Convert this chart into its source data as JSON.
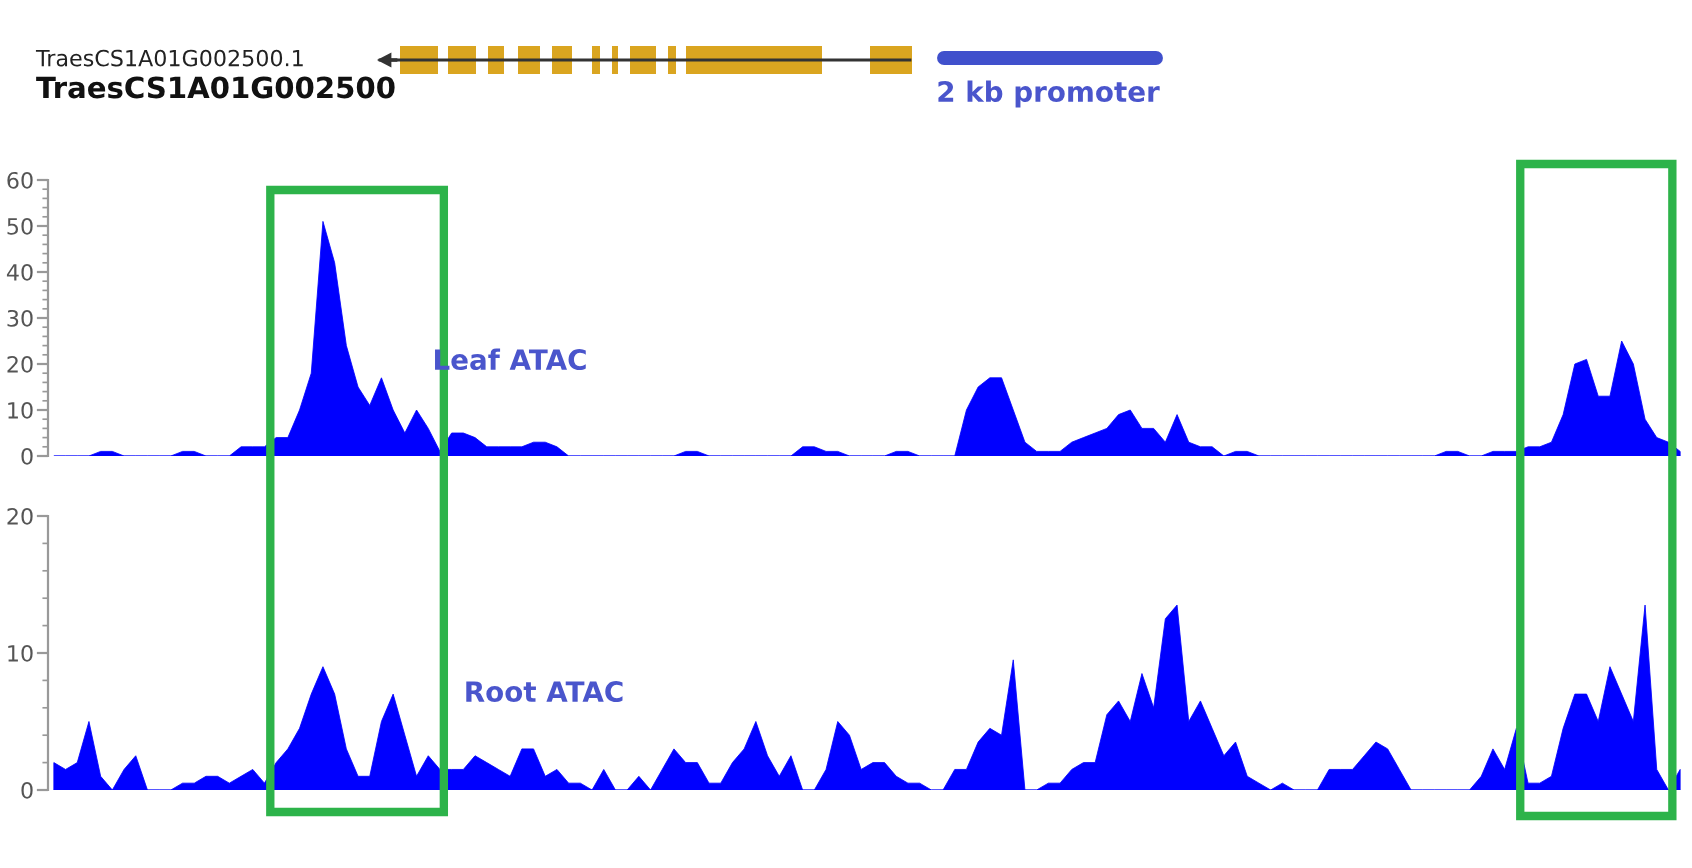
{
  "chart_data": [
    {
      "type": "area",
      "title": "Leaf ATAC",
      "annotations": [
        "TraesCS1A01G002500.1",
        "TraesCS1A01G002500",
        "2 kb promoter"
      ],
      "ylim": [
        0,
        60
      ],
      "yticks": [
        0,
        10,
        20,
        30,
        40,
        50,
        60
      ],
      "color": "#0000ff",
      "categories": [
        null,
        null,
        null,
        null,
        null,
        null,
        null,
        null,
        null,
        null,
        null,
        null,
        null,
        null,
        null,
        null,
        null,
        null,
        null,
        null,
        null,
        null,
        null,
        null,
        null,
        null,
        null,
        null,
        null,
        null,
        null,
        null,
        null,
        null,
        null,
        null,
        null,
        null,
        null,
        null,
        null,
        null,
        null,
        null,
        null,
        null,
        null,
        null,
        null,
        null,
        null,
        null,
        null,
        null,
        null,
        null,
        null,
        null,
        null,
        null,
        null,
        null,
        null,
        null,
        null,
        null,
        null,
        null,
        null,
        null,
        null,
        null,
        null,
        null,
        null,
        null,
        null,
        null,
        null,
        null,
        null,
        null,
        null,
        null,
        null,
        null,
        null,
        null,
        null,
        null,
        null,
        null,
        null,
        null,
        null,
        null,
        null,
        null,
        null,
        null,
        null,
        null,
        null,
        null,
        null,
        null,
        null,
        null,
        null,
        null,
        null,
        null,
        null,
        null,
        null,
        null,
        null,
        null,
        null,
        null,
        null,
        null,
        null,
        null,
        null,
        null,
        null,
        null,
        null,
        null,
        null,
        null,
        null,
        null,
        null,
        null,
        null,
        null,
        null,
        null
      ],
      "values": [
        0,
        0,
        0,
        0,
        1,
        1,
        0,
        0,
        0,
        0,
        0,
        1,
        1,
        0,
        0,
        0,
        2,
        2,
        2,
        4,
        4,
        10,
        18,
        51,
        42,
        24,
        15,
        11,
        17,
        10,
        5,
        10,
        6,
        1,
        5,
        5,
        4,
        2,
        2,
        2,
        2,
        3,
        3,
        2,
        0,
        0,
        0,
        0,
        0,
        0,
        0,
        0,
        0,
        0,
        1,
        1,
        0,
        0,
        0,
        0,
        0,
        0,
        0,
        0,
        2,
        2,
        1,
        1,
        0,
        0,
        0,
        0,
        1,
        1,
        0,
        0,
        0,
        0,
        10,
        15,
        17,
        17,
        10,
        3,
        1,
        1,
        1,
        3,
        4,
        5,
        6,
        9,
        10,
        6,
        6,
        3,
        9,
        3,
        2,
        2,
        0,
        1,
        1,
        0,
        0,
        0,
        0,
        0,
        0,
        0,
        0,
        0,
        0,
        0,
        0,
        0,
        0,
        0,
        0,
        1,
        1,
        0,
        0,
        1,
        1,
        1,
        2,
        2,
        3,
        9,
        20,
        21,
        13,
        13,
        25,
        20,
        8,
        4,
        3,
        1
      ]
    },
    {
      "type": "area",
      "title": "Root ATAC",
      "ylim": [
        0,
        20
      ],
      "yticks": [
        0,
        10,
        20
      ],
      "color": "#0000ff",
      "categories": [
        null,
        null,
        null,
        null,
        null,
        null,
        null,
        null,
        null,
        null,
        null,
        null,
        null,
        null,
        null,
        null,
        null,
        null,
        null,
        null,
        null,
        null,
        null,
        null,
        null,
        null,
        null,
        null,
        null,
        null,
        null,
        null,
        null,
        null,
        null,
        null,
        null,
        null,
        null,
        null,
        null,
        null,
        null,
        null,
        null,
        null,
        null,
        null,
        null,
        null,
        null,
        null,
        null,
        null,
        null,
        null,
        null,
        null,
        null,
        null,
        null,
        null,
        null,
        null,
        null,
        null,
        null,
        null,
        null,
        null,
        null,
        null,
        null,
        null,
        null,
        null,
        null,
        null,
        null,
        null,
        null,
        null,
        null,
        null,
        null,
        null,
        null,
        null,
        null,
        null,
        null,
        null,
        null,
        null,
        null,
        null,
        null,
        null,
        null,
        null,
        null,
        null,
        null,
        null,
        null,
        null,
        null,
        null,
        null,
        null,
        null,
        null,
        null,
        null,
        null,
        null,
        null,
        null,
        null,
        null,
        null,
        null,
        null,
        null,
        null,
        null,
        null,
        null,
        null,
        null,
        null,
        null,
        null,
        null,
        null,
        null,
        null,
        null,
        null,
        null
      ],
      "values": [
        2,
        1.5,
        2,
        5,
        1,
        0,
        1.5,
        2.5,
        0,
        0,
        0,
        0.5,
        0.5,
        1,
        1,
        0.5,
        1,
        1.5,
        0.5,
        2,
        3,
        4.5,
        7,
        9,
        7,
        3,
        1,
        1,
        5,
        7,
        4,
        1,
        2.5,
        1.5,
        1.5,
        1.5,
        2.5,
        2,
        1.5,
        1,
        3,
        3,
        1,
        1.5,
        0.5,
        0.5,
        0,
        1.5,
        0,
        0,
        1,
        0,
        1.5,
        3,
        2,
        2,
        0.5,
        0.5,
        2,
        3,
        5,
        2.5,
        1,
        2.5,
        0,
        0,
        1.5,
        5,
        4,
        1.5,
        2,
        2,
        1,
        0.5,
        0.5,
        0,
        0,
        1.5,
        1.5,
        3.5,
        4.5,
        4,
        9.5,
        0,
        0,
        0.5,
        0.5,
        1.5,
        2,
        2,
        5.5,
        6.5,
        5,
        8.5,
        6,
        12.5,
        13.5,
        5,
        6.5,
        4.5,
        2.5,
        3.5,
        1,
        0.5,
        0,
        0.5,
        0,
        0,
        0,
        1.5,
        1.5,
        1.5,
        2.5,
        3.5,
        3,
        1.5,
        0,
        0,
        0,
        0,
        0,
        0,
        1,
        3,
        1.5,
        4.5,
        0.5,
        0.5,
        1,
        4.5,
        7,
        7,
        5,
        9,
        7,
        5,
        13.5,
        1.5,
        0,
        1.5
      ]
    }
  ]
}
